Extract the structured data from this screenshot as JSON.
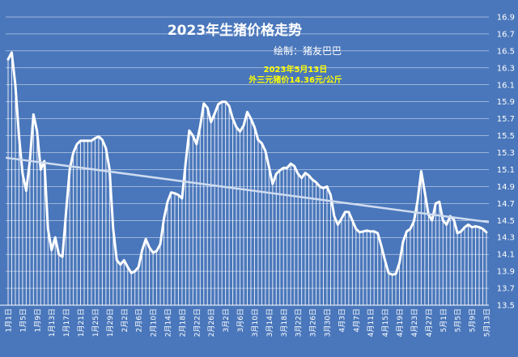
{
  "chart_data": {
    "type": "area",
    "title": "2023年生猪价格走势",
    "subtitle": "绘制：猪友巴巴",
    "annotation": [
      "2023年5月13日",
      "外三元猪价14.36元/公斤"
    ],
    "xlabel": "",
    "ylabel": "",
    "ylim": [
      13.5,
      16.9
    ],
    "yticks": [
      13.5,
      13.7,
      13.9,
      14.1,
      14.3,
      14.5,
      14.7,
      14.9,
      15.1,
      15.3,
      15.5,
      15.7,
      15.9,
      16.1,
      16.3,
      16.5,
      16.7,
      16.9
    ],
    "y_axis_side": "right",
    "grid": false,
    "x_tick_labels": [
      "1月1日",
      "1月5日",
      "1月9日",
      "1月13日",
      "1月17日",
      "1月21日",
      "1月25日",
      "1月29日",
      "2月2日",
      "2月6日",
      "2月10日",
      "2月14日",
      "2月18日",
      "2月22日",
      "2月26日",
      "3月2日",
      "3月6日",
      "3月10日",
      "3月14日",
      "3月18日",
      "3月22日",
      "3月26日",
      "3月30日",
      "4月3日",
      "4月7日",
      "4月11日",
      "4月15日",
      "4月19日",
      "4月23日",
      "4月27日",
      "5月1日",
      "5月5日",
      "5月9日",
      "5月13日"
    ],
    "series": [
      {
        "values": [
          16.4,
          16.48,
          16.1,
          15.5,
          15.05,
          14.85,
          15.2,
          15.75,
          15.55,
          15.1,
          15.2,
          14.4,
          14.15,
          14.3,
          14.1,
          14.07,
          14.6,
          15.1,
          15.3,
          15.4,
          15.44,
          15.44,
          15.44,
          15.44,
          15.47,
          15.49,
          15.45,
          15.35,
          15.1,
          14.4,
          14.03,
          13.98,
          14.03,
          13.95,
          13.88,
          13.9,
          13.95,
          14.15,
          14.28,
          14.18,
          14.12,
          14.14,
          14.22,
          14.52,
          14.72,
          14.83,
          14.82,
          14.8,
          14.76,
          15.18,
          15.56,
          15.5,
          15.4,
          15.61,
          15.88,
          15.83,
          15.66,
          15.76,
          15.87,
          15.9,
          15.9,
          15.85,
          15.7,
          15.6,
          15.55,
          15.62,
          15.78,
          15.7,
          15.6,
          15.45,
          15.41,
          15.32,
          15.13,
          14.93,
          15.05,
          15.09,
          15.12,
          15.12,
          15.17,
          15.14,
          15.05,
          15.0,
          15.06,
          15.03,
          14.98,
          14.95,
          14.9,
          14.88,
          14.9,
          14.8,
          14.55,
          14.45,
          14.52,
          14.6,
          14.6,
          14.5,
          14.4,
          14.36,
          14.37,
          14.38,
          14.37,
          14.37,
          14.35,
          14.2,
          14.03,
          13.88,
          13.86,
          13.87,
          14.0,
          14.25,
          14.37,
          14.4,
          14.49,
          14.73,
          15.08,
          14.83,
          14.57,
          14.5,
          14.7,
          14.72,
          14.5,
          14.45,
          14.55,
          14.51,
          14.35,
          14.37,
          14.42,
          14.45,
          14.42,
          14.43,
          14.42,
          14.4,
          14.36
        ]
      },
      {
        "type": "trend",
        "values": [
          15.24,
          14.48
        ]
      }
    ]
  }
}
